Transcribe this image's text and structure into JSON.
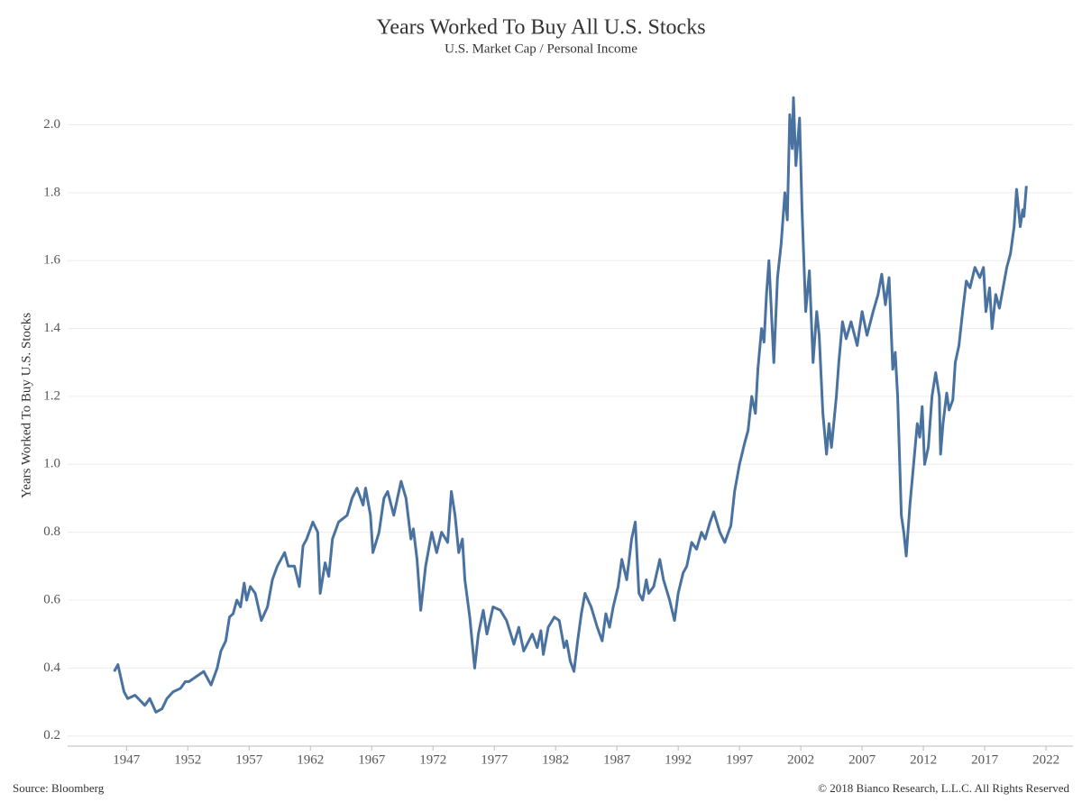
{
  "chart_data": {
    "type": "line",
    "title": "Years Worked To Buy All U.S. Stocks",
    "subtitle": "U.S. Market Cap / Personal Income",
    "y_label": "Years Worked To Buy U.S. Stocks",
    "source": "Source: Bloomberg",
    "copyright": "© 2018 Bianco Research, L.L.C. All Rights Reserved",
    "color": "#4a72a0",
    "grid": true,
    "xlim": [
      1942.2,
      2024.2
    ],
    "xticks": [
      1947,
      1952,
      1957,
      1962,
      1967,
      1972,
      1977,
      1982,
      1987,
      1992,
      1997,
      2002,
      2007,
      2012,
      2017,
      2022
    ],
    "ylim": [
      0.17,
      2.15
    ],
    "yticks": [
      0.2,
      0.4,
      0.6,
      0.8,
      {
        "value": 1,
        "label": "1.0"
      },
      1.2,
      1.4,
      1.6,
      1.8,
      {
        "value": 2,
        "label": "2.0"
      }
    ],
    "x": [
      1946.0,
      1946.3,
      1946.8,
      1947.1,
      1947.7,
      1948.5,
      1948.9,
      1949.4,
      1949.9,
      1950.3,
      1950.8,
      1951.4,
      1951.8,
      1952.1,
      1952.9,
      1953.3,
      1953.6,
      1953.9,
      1954.4,
      1954.7,
      1955.1,
      1955.4,
      1955.7,
      1956.0,
      1956.3,
      1956.6,
      1956.8,
      1957.1,
      1957.5,
      1958.0,
      1958.5,
      1958.9,
      1959.3,
      1959.6,
      1959.9,
      1960.2,
      1960.7,
      1961.1,
      1961.4,
      1961.7,
      1962.2,
      1962.6,
      1962.8,
      1963.2,
      1963.5,
      1963.8,
      1964.3,
      1965.0,
      1965.4,
      1965.8,
      1966.3,
      1966.5,
      1966.9,
      1967.1,
      1967.6,
      1968.0,
      1968.3,
      1968.8,
      1969.1,
      1969.4,
      1969.8,
      1970.2,
      1970.4,
      1970.7,
      1971.0,
      1971.4,
      1971.9,
      1972.3,
      1972.7,
      1973.2,
      1973.5,
      1973.8,
      1974.1,
      1974.4,
      1974.6,
      1975.0,
      1975.4,
      1975.7,
      1976.1,
      1976.4,
      1976.9,
      1977.5,
      1978.0,
      1978.6,
      1979.0,
      1979.4,
      1980.1,
      1980.5,
      1980.8,
      1981.0,
      1981.4,
      1981.9,
      1982.3,
      1982.7,
      1982.9,
      1983.2,
      1983.5,
      1983.8,
      1984.1,
      1984.4,
      1984.9,
      1985.4,
      1985.8,
      1986.1,
      1986.4,
      1986.7,
      1987.1,
      1987.4,
      1987.8,
      1988.2,
      1988.5,
      1988.8,
      1989.1,
      1989.4,
      1989.6,
      1990.0,
      1990.5,
      1990.8,
      1991.3,
      1991.7,
      1992.0,
      1992.4,
      1992.7,
      1993.1,
      1993.5,
      1993.9,
      1994.2,
      1994.6,
      1994.9,
      1995.4,
      1995.8,
      1996.3,
      1996.6,
      1997.0,
      1997.4,
      1997.7,
      1998.0,
      1998.3,
      1998.5,
      1998.8,
      1999.0,
      1999.2,
      1999.4,
      1999.8,
      2000.1,
      2000.4,
      2000.7,
      2000.9,
      2001.1,
      2001.3,
      2001.4,
      2001.6,
      2001.9,
      2002.1,
      2002.4,
      2002.7,
      2003.0,
      2003.3,
      2003.5,
      2003.8,
      2004.1,
      2004.3,
      2004.5,
      2004.9,
      2005.1,
      2005.4,
      2005.7,
      2006.1,
      2006.6,
      2007.0,
      2007.4,
      2007.9,
      2008.3,
      2008.6,
      2008.9,
      2009.2,
      2009.5,
      2009.7,
      2009.9,
      2010.2,
      2010.4,
      2010.6,
      2010.9,
      2011.2,
      2011.5,
      2011.7,
      2011.9,
      2012.1,
      2012.4,
      2012.7,
      2013.0,
      2013.3,
      2013.4,
      2013.6,
      2013.9,
      2014.1,
      2014.4,
      2014.6,
      2014.9,
      2015.2,
      2015.5,
      2015.8,
      2016.2,
      2016.6,
      2016.9,
      2017.1,
      2017.4,
      2017.6,
      2017.9,
      2018.2,
      2018.5,
      2018.8,
      2019.1,
      2019.4,
      2019.6,
      2019.9,
      2020.1,
      2020.2,
      2020.4
    ],
    "values": [
      0.39,
      0.41,
      0.33,
      0.31,
      0.32,
      0.29,
      0.31,
      0.27,
      0.28,
      0.31,
      0.33,
      0.34,
      0.36,
      0.36,
      0.38,
      0.39,
      0.37,
      0.35,
      0.4,
      0.45,
      0.48,
      0.55,
      0.56,
      0.6,
      0.58,
      0.65,
      0.6,
      0.64,
      0.62,
      0.54,
      0.58,
      0.66,
      0.7,
      0.72,
      0.74,
      0.7,
      0.7,
      0.64,
      0.76,
      0.78,
      0.83,
      0.8,
      0.62,
      0.71,
      0.67,
      0.78,
      0.83,
      0.85,
      0.9,
      0.93,
      0.88,
      0.93,
      0.85,
      0.74,
      0.8,
      0.9,
      0.92,
      0.85,
      0.9,
      0.95,
      0.9,
      0.78,
      0.81,
      0.72,
      0.57,
      0.7,
      0.8,
      0.74,
      0.8,
      0.77,
      0.92,
      0.85,
      0.74,
      0.78,
      0.66,
      0.55,
      0.4,
      0.5,
      0.57,
      0.5,
      0.58,
      0.57,
      0.54,
      0.47,
      0.52,
      0.45,
      0.5,
      0.46,
      0.51,
      0.44,
      0.52,
      0.55,
      0.54,
      0.46,
      0.48,
      0.42,
      0.39,
      0.48,
      0.56,
      0.62,
      0.58,
      0.52,
      0.48,
      0.56,
      0.52,
      0.58,
      0.64,
      0.72,
      0.66,
      0.78,
      0.83,
      0.62,
      0.6,
      0.66,
      0.62,
      0.64,
      0.72,
      0.66,
      0.6,
      0.54,
      0.62,
      0.68,
      0.7,
      0.77,
      0.75,
      0.8,
      0.78,
      0.83,
      0.86,
      0.8,
      0.77,
      0.82,
      0.92,
      1.0,
      1.06,
      1.1,
      1.2,
      1.15,
      1.28,
      1.4,
      1.36,
      1.5,
      1.6,
      1.3,
      1.55,
      1.65,
      1.8,
      1.72,
      2.03,
      1.93,
      2.08,
      1.88,
      2.02,
      1.75,
      1.45,
      1.57,
      1.3,
      1.45,
      1.38,
      1.15,
      1.03,
      1.12,
      1.05,
      1.2,
      1.3,
      1.42,
      1.37,
      1.42,
      1.35,
      1.45,
      1.38,
      1.45,
      1.5,
      1.56,
      1.47,
      1.55,
      1.28,
      1.33,
      1.2,
      0.85,
      0.8,
      0.73,
      0.88,
      1.0,
      1.12,
      1.08,
      1.17,
      1.0,
      1.05,
      1.2,
      1.27,
      1.2,
      1.03,
      1.12,
      1.21,
      1.16,
      1.19,
      1.3,
      1.35,
      1.45,
      1.54,
      1.52,
      1.58,
      1.55,
      1.58,
      1.45,
      1.52,
      1.4,
      1.5,
      1.46,
      1.52,
      1.58,
      1.62,
      1.7,
      1.81,
      1.7,
      1.75,
      1.73,
      1.82
    ]
  }
}
